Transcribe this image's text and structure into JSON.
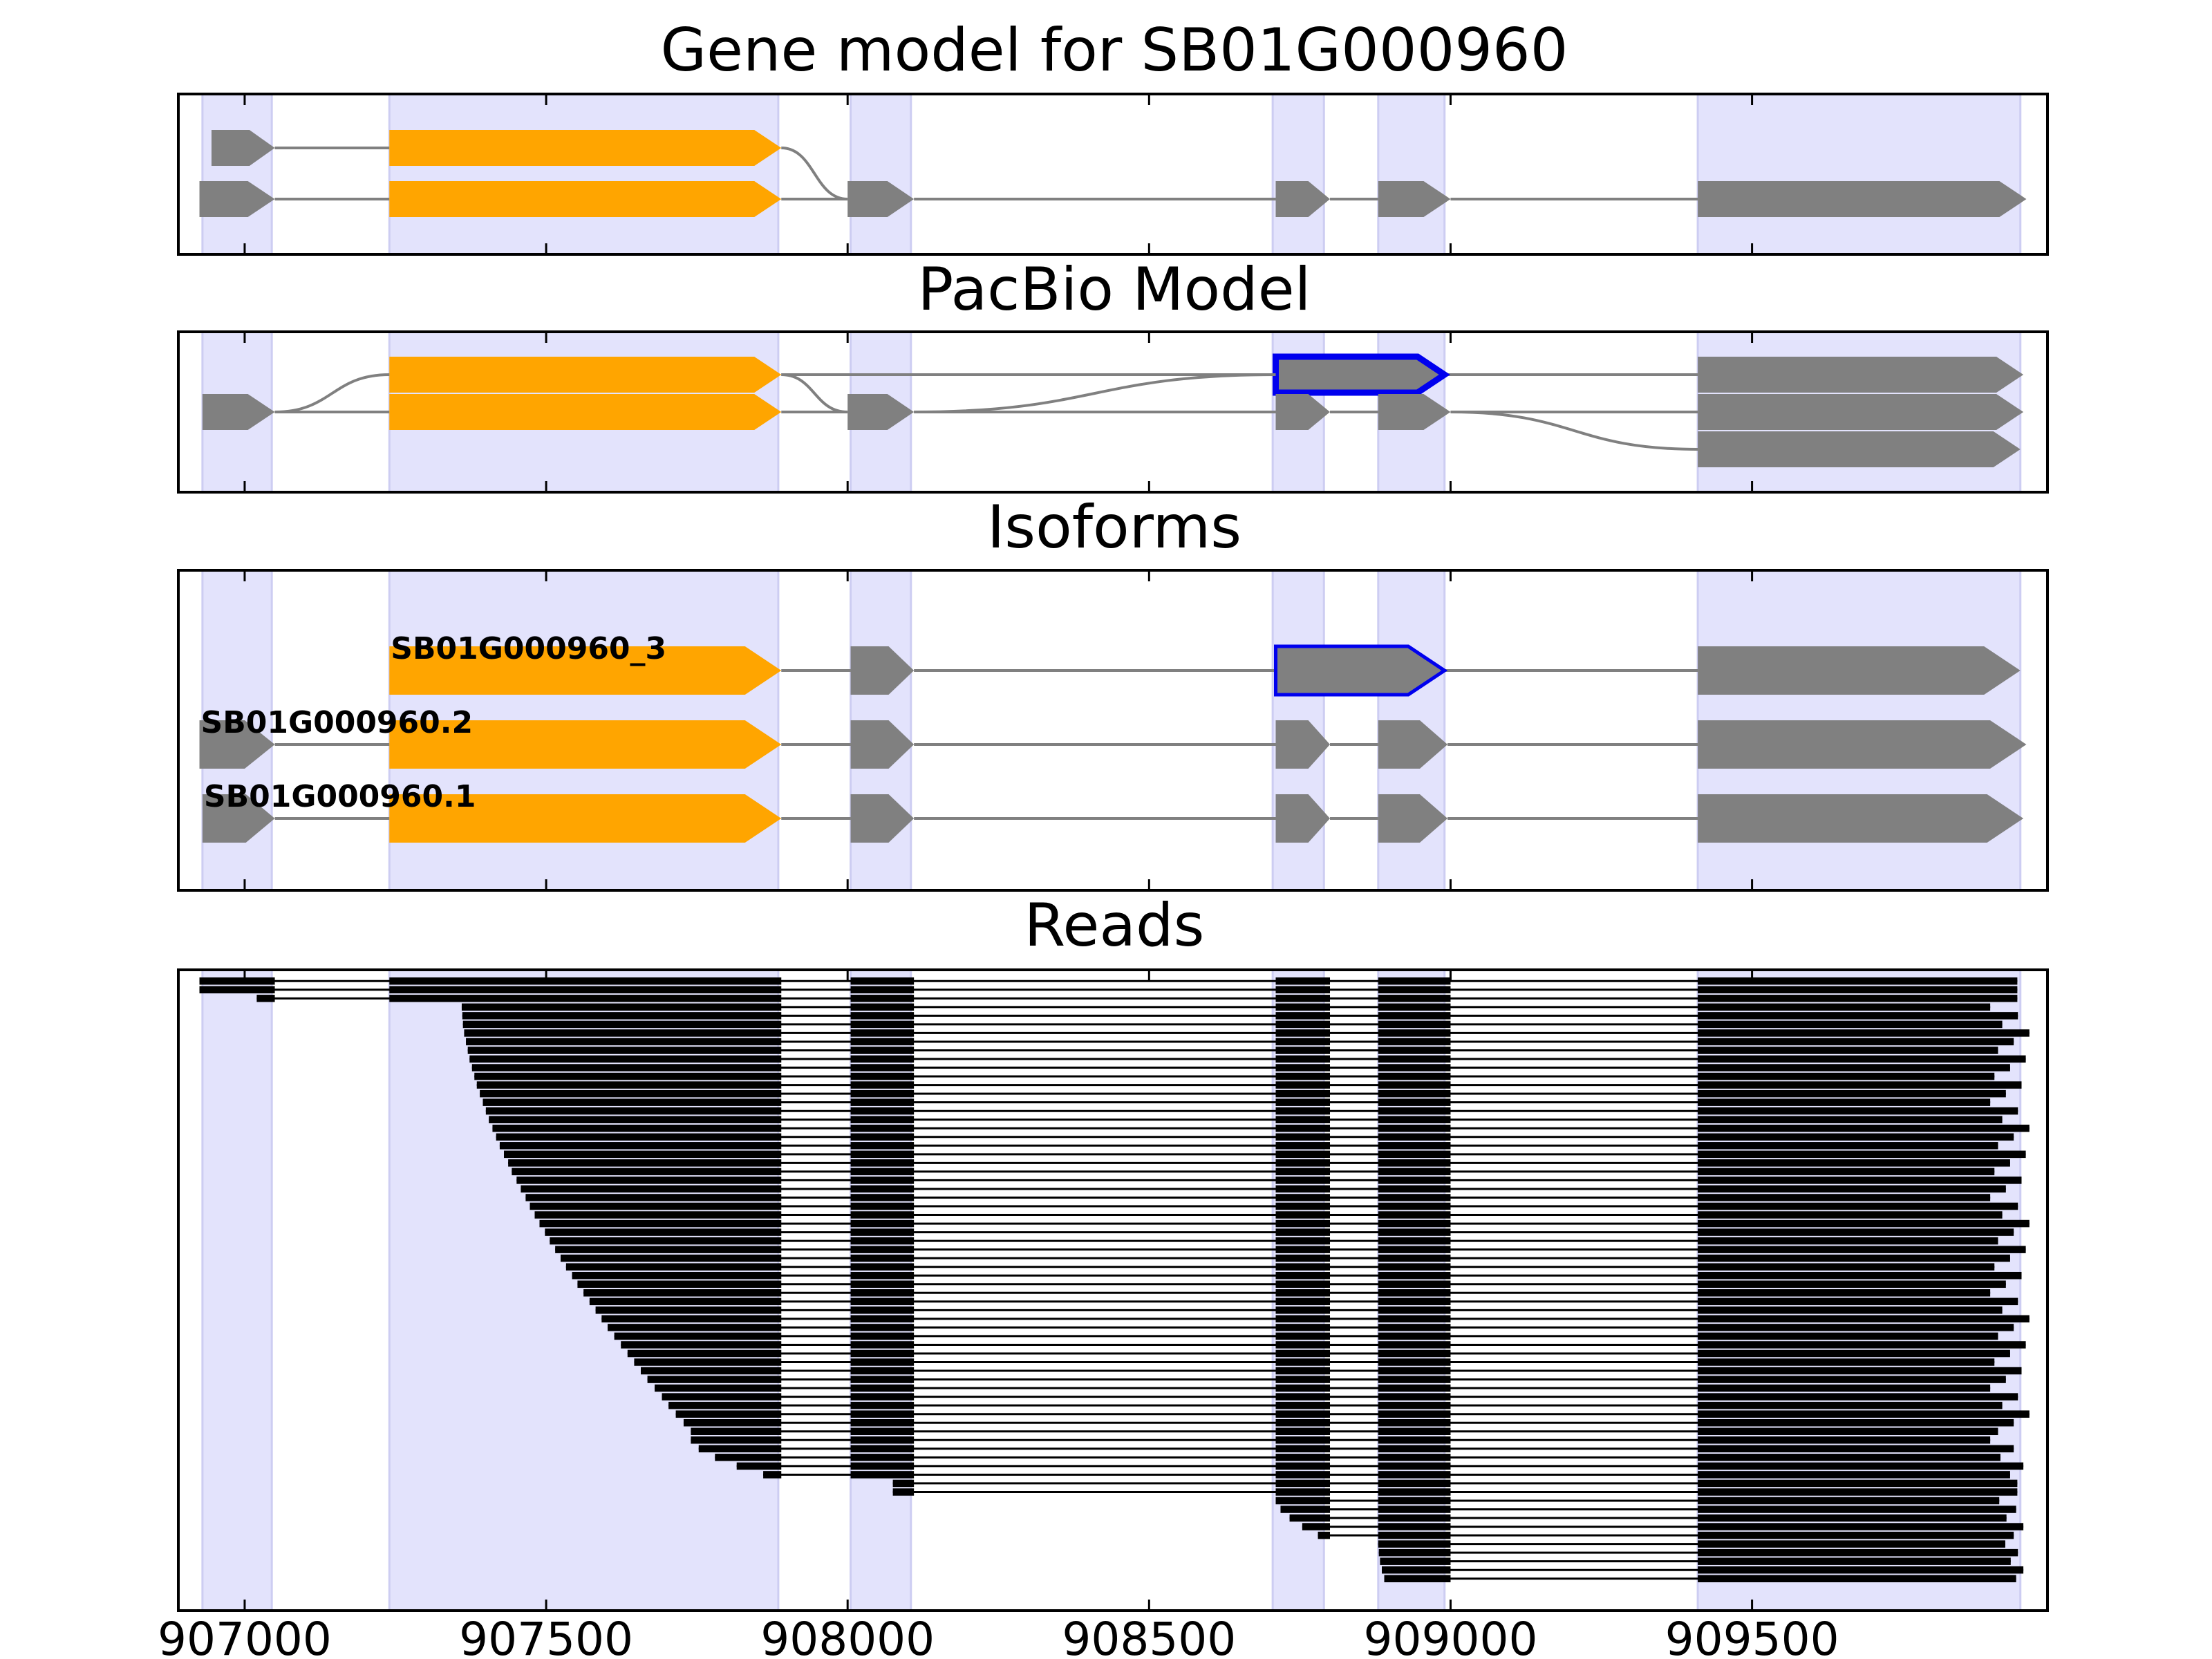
{
  "colors": {
    "exon_band": "#E3E3FC",
    "exon_band_edge": "#CDCDF2",
    "gray_exon": "#808080",
    "cds_exon": "#FFA500",
    "novel_outline": "#0000EE",
    "intron": "#808080",
    "read": "#000000"
  },
  "chart_data": {
    "type": "gene-model",
    "xlim": [
      906890,
      909990
    ],
    "x_ticks": [
      907000,
      907500,
      908000,
      908500,
      909000,
      909500
    ],
    "x_tick_labels": [
      "907000",
      "907500",
      "908000",
      "908500",
      "909000",
      "909500"
    ],
    "exon_bands": [
      [
        906930,
        907045
      ],
      [
        907240,
        907885
      ],
      [
        908005,
        908105
      ],
      [
        908705,
        908790
      ],
      [
        908880,
        908990
      ],
      [
        909410,
        909945
      ]
    ],
    "panels": [
      {
        "title": "Gene model for SB01G000960",
        "lanes": 2,
        "transcripts": [
          {
            "lane": 0,
            "exons": [
              [
                906945,
                907050
              ],
              [
                907240,
                907890
              ]
            ],
            "cds": [
              [
                907240,
                907890
              ]
            ],
            "novel": [],
            "switch_to_lane": 1,
            "switch_end": 908000
          },
          {
            "lane": 1,
            "exons": [
              [
                906925,
                907050
              ],
              [
                907240,
                907890
              ],
              [
                908000,
                908110
              ],
              [
                908710,
                908800
              ],
              [
                908880,
                909000
              ],
              [
                909410,
                909955
              ]
            ],
            "cds": [
              [
                907240,
                907890
              ]
            ],
            "novel": []
          }
        ]
      },
      {
        "title": "PacBio Model",
        "lanes": 3,
        "transcripts": [
          {
            "lane": 0,
            "exons": [
              [
                907240,
                907890
              ],
              [
                908710,
                908990
              ],
              [
                909410,
                909950
              ]
            ],
            "cds": [
              [
                907240,
                907890
              ]
            ],
            "novel": [
              [
                908710,
                908990
              ]
            ]
          },
          {
            "lane": 1,
            "exons": [
              [
                906930,
                907050
              ],
              [
                907240,
                907890
              ],
              [
                908000,
                908110
              ],
              [
                908710,
                908800
              ],
              [
                908880,
                909000
              ],
              [
                909410,
                909950
              ]
            ],
            "cds": [
              [
                907240,
                907890
              ]
            ],
            "novel": []
          },
          {
            "lane": 2,
            "exons": [
              [
                909410,
                909945
              ]
            ],
            "cds": [],
            "novel": []
          }
        ],
        "connectors": [
          {
            "from": [
              907050,
              1
            ],
            "to": [
              907240,
              0
            ]
          },
          {
            "from": [
              907890,
              0
            ],
            "to": [
              908000,
              1
            ]
          },
          {
            "from": [
              908110,
              1
            ],
            "to": [
              908710,
              0
            ]
          },
          {
            "from": [
              909000,
              1
            ],
            "to": [
              909410,
              2
            ]
          }
        ]
      },
      {
        "title": "Isoforms",
        "lanes": 3,
        "transcripts": [
          {
            "lane": 0,
            "name": "SB01G000960_3",
            "exons": [
              [
                907240,
                907890
              ],
              [
                908005,
                908110
              ],
              [
                908710,
                908990
              ],
              [
                909410,
                909945
              ]
            ],
            "cds": [
              [
                907240,
                907890
              ]
            ],
            "novel": [
              [
                908710,
                908990
              ]
            ]
          },
          {
            "lane": 1,
            "name": "SB01G000960.2",
            "exons": [
              [
                906925,
                907050
              ],
              [
                907240,
                907890
              ],
              [
                908005,
                908110
              ],
              [
                908710,
                908800
              ],
              [
                908880,
                908995
              ],
              [
                909410,
                909955
              ]
            ],
            "cds": [
              [
                907240,
                907890
              ]
            ],
            "novel": []
          },
          {
            "lane": 2,
            "name": "SB01G000960.1",
            "exons": [
              [
                906930,
                907050
              ],
              [
                907240,
                907890
              ],
              [
                908005,
                908110
              ],
              [
                908710,
                908800
              ],
              [
                908880,
                908995
              ],
              [
                909410,
                909950
              ]
            ],
            "cds": [
              [
                907240,
                907890
              ]
            ],
            "novel": []
          }
        ]
      },
      {
        "title": "Reads",
        "read_count": 70,
        "read_groups": [
          {
            "count": 2,
            "exons": [
              [
                906925,
                907050
              ],
              [
                907240,
                907890
              ],
              [
                908005,
                908110
              ],
              [
                908710,
                908800
              ],
              [
                908880,
                909000
              ],
              [
                909410,
                909940
              ]
            ]
          },
          {
            "count": 1,
            "exons": [
              [
                907020,
                907050
              ],
              [
                907240,
                907890
              ],
              [
                908005,
                908110
              ],
              [
                908710,
                908800
              ],
              [
                908880,
                909000
              ],
              [
                909410,
                909940
              ]
            ]
          },
          {
            "count": 50,
            "start_range": [
              907360,
              907740
            ],
            "end_range": [
              909895,
              909960
            ],
            "exons": [
              [
                907360,
                907890
              ],
              [
                908005,
                908110
              ],
              [
                908710,
                908800
              ],
              [
                908880,
                909000
              ],
              [
                909410,
                909940
              ]
            ]
          },
          {
            "count": 5,
            "start_range": [
              907740,
              907860
            ],
            "end_range": [
              909895,
              909950
            ],
            "exons": [
              [
                907750,
                907890
              ],
              [
                908005,
                908110
              ],
              [
                908710,
                908800
              ],
              [
                908880,
                909000
              ],
              [
                909410,
                909940
              ]
            ]
          },
          {
            "count": 2,
            "exons": [
              [
                908075,
                908110
              ],
              [
                908710,
                908800
              ],
              [
                908880,
                909000
              ],
              [
                909410,
                909940
              ]
            ]
          },
          {
            "count": 5,
            "start_range": [
              908710,
              908780
            ],
            "end_range": [
              909910,
              909950
            ],
            "exons": [
              [
                908710,
                908800
              ],
              [
                908880,
                909000
              ],
              [
                909410,
                909940
              ]
            ]
          },
          {
            "count": 5,
            "start_range": [
              908880,
              908890
            ],
            "end_range": [
              909920,
              909950
            ],
            "exons": [
              [
                908880,
                909000
              ],
              [
                909410,
                909940
              ]
            ]
          }
        ]
      }
    ]
  }
}
